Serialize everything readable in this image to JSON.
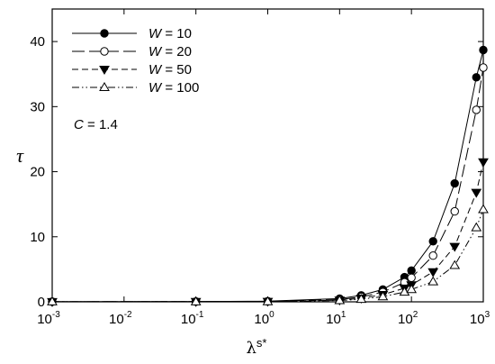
{
  "chart_data": {
    "type": "line",
    "xscale": "log",
    "xlim": [
      0.001,
      1000
    ],
    "ylim": [
      0,
      45
    ],
    "ylabel": "τ",
    "xlabel": {
      "base": "λ",
      "sup": "s*"
    },
    "x_ticks": [
      {
        "value": 0.001,
        "base": "10",
        "exp": "-3"
      },
      {
        "value": 0.01,
        "base": "10",
        "exp": "-2"
      },
      {
        "value": 0.1,
        "base": "10",
        "exp": "-1"
      },
      {
        "value": 1,
        "base": "10",
        "exp": "0"
      },
      {
        "value": 10,
        "base": "10",
        "exp": "1"
      },
      {
        "value": 100,
        "base": "10",
        "exp": "2"
      },
      {
        "value": 1000,
        "base": "10",
        "exp": "3"
      }
    ],
    "y_ticks": [
      0,
      10,
      20,
      30,
      40
    ],
    "annotation": {
      "prefix": "C",
      "text": " = 1.4"
    },
    "legend_placement": "top-left",
    "grid": false,
    "series": [
      {
        "name": "W = 10",
        "var": "W",
        "eq": " = 10",
        "marker": "filled-circle",
        "dash": "solid",
        "x": [
          0.001,
          0.1,
          1,
          10,
          20,
          40,
          80,
          100,
          200,
          400,
          800,
          1000
        ],
        "y": [
          0.03,
          0.05,
          0.1,
          0.5,
          1.0,
          1.9,
          3.8,
          4.8,
          9.3,
          18.2,
          34.5,
          38.7
        ]
      },
      {
        "name": "W = 20",
        "var": "W",
        "eq": " = 20",
        "marker": "open-circle",
        "dash": "longdash",
        "x": [
          0.001,
          0.1,
          1,
          10,
          20,
          40,
          80,
          100,
          200,
          400,
          800,
          1000
        ],
        "y": [
          0.02,
          0.04,
          0.08,
          0.35,
          0.75,
          1.5,
          3.0,
          3.7,
          7.1,
          13.9,
          29.5,
          36.0
        ]
      },
      {
        "name": "W = 50",
        "var": "W",
        "eq": " = 50",
        "marker": "filled-triangle-down",
        "dash": "shortdash",
        "x": [
          0.001,
          0.1,
          1,
          10,
          20,
          40,
          80,
          100,
          200,
          400,
          800,
          1000
        ],
        "y": [
          0.02,
          0.03,
          0.06,
          0.25,
          0.55,
          1.1,
          2.1,
          2.6,
          4.6,
          8.5,
          16.8,
          21.5
        ]
      },
      {
        "name": "W = 100",
        "var": "W",
        "eq": " = 100",
        "marker": "open-triangle-up",
        "dash": "dashdotdot",
        "x": [
          0.001,
          0.1,
          1,
          10,
          20,
          40,
          80,
          100,
          200,
          400,
          800,
          1000
        ],
        "y": [
          0.01,
          0.02,
          0.04,
          0.2,
          0.4,
          0.8,
          1.5,
          1.9,
          3.1,
          5.6,
          11.4,
          14.2
        ]
      }
    ]
  }
}
